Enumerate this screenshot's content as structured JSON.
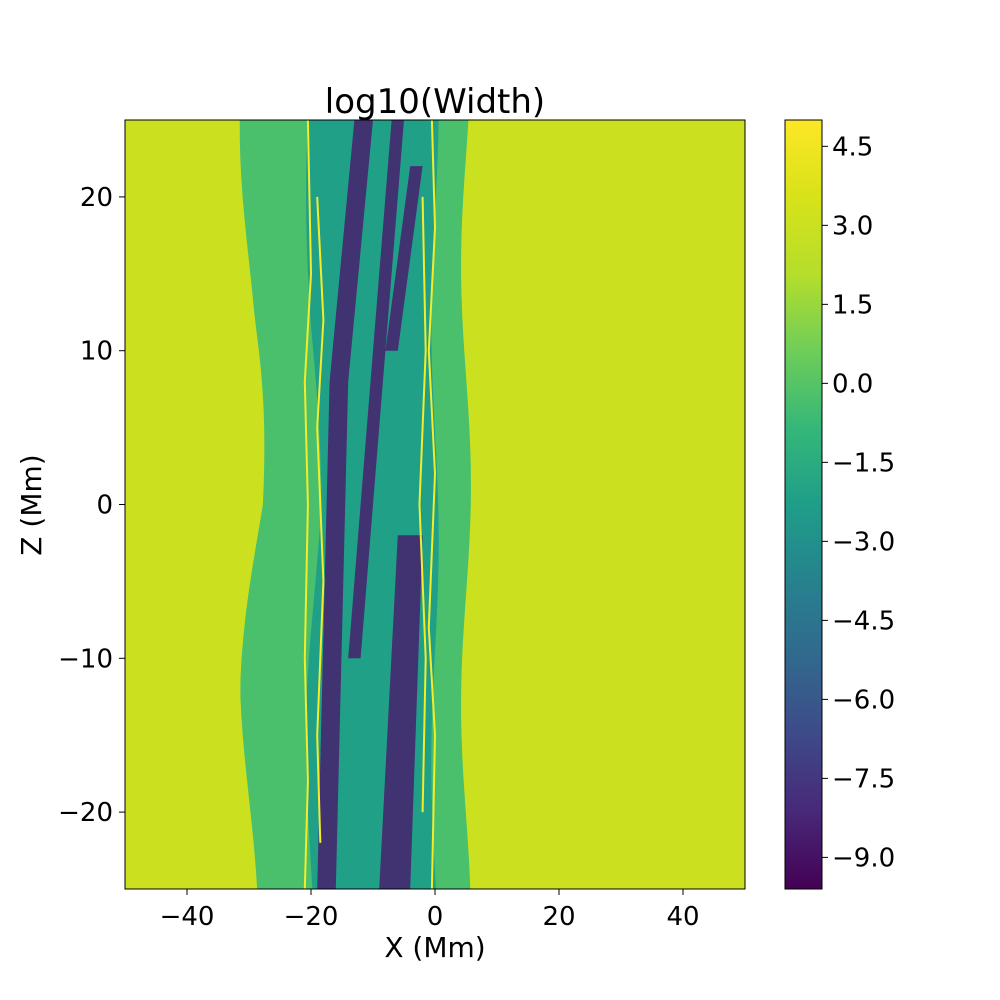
{
  "chart_data": {
    "type": "heatmap",
    "title": "log10(Width)",
    "xlabel": "X (Mm)",
    "ylabel": "Z (Mm)",
    "xlim": [
      -50,
      50
    ],
    "ylim": [
      -25,
      25
    ],
    "xticks": [
      -40,
      -20,
      0,
      20,
      40
    ],
    "xtick_labels": [
      "−40",
      "−20",
      "0",
      "20",
      "40"
    ],
    "yticks": [
      -20,
      -10,
      0,
      10,
      20
    ],
    "ytick_labels": [
      "−20",
      "−10",
      "0",
      "10",
      "20"
    ],
    "colormap": "viridis",
    "colorbar": {
      "range": [
        -9.6,
        5.0
      ],
      "ticks": [
        -9.0,
        -7.5,
        -6.0,
        -4.5,
        -3.0,
        -1.5,
        0.0,
        1.5,
        3.0,
        4.5
      ],
      "tick_labels": [
        "−9.0",
        "−7.5",
        "−6.0",
        "−4.5",
        "−3.0",
        "−1.5",
        "0.0",
        "1.5",
        "3.0",
        "4.5"
      ]
    },
    "regions": [
      {
        "name": "background",
        "value": 3.0
      },
      {
        "name": "outer band",
        "value": -0.3,
        "x_range": [
          -30,
          5
        ]
      },
      {
        "name": "inner band",
        "value": -2.2,
        "x_range": [
          -20,
          0
        ]
      },
      {
        "name": "strands",
        "value": -8.5,
        "x_range": [
          -19,
          -2
        ]
      }
    ],
    "contour_color": "#f4ec2b",
    "grid": false
  }
}
